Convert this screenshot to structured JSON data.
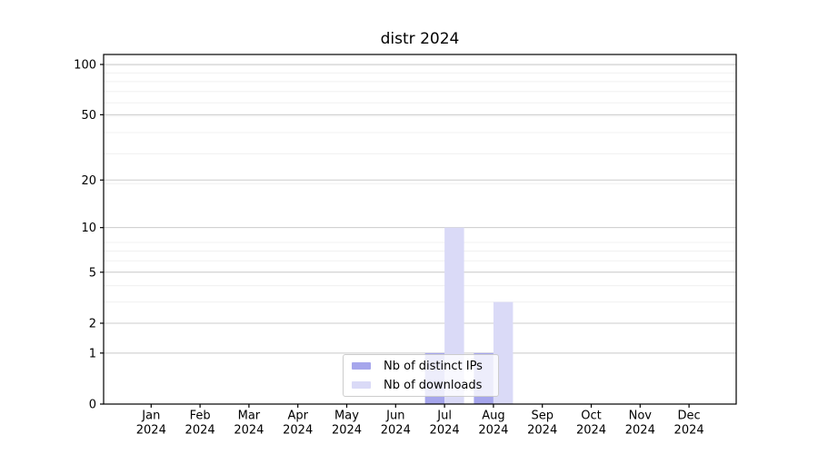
{
  "title": "distr 2024",
  "chart_data": {
    "type": "bar",
    "title": "distr 2024",
    "x": {
      "months": [
        "Jan",
        "Feb",
        "Mar",
        "Apr",
        "May",
        "Jun",
        "Jul",
        "Aug",
        "Sep",
        "Oct",
        "Nov",
        "Dec"
      ],
      "year": "2024"
    },
    "categories": [
      "Jan 2024",
      "Feb 2024",
      "Mar 2024",
      "Apr 2024",
      "May 2024",
      "Jun 2024",
      "Jul 2024",
      "Aug 2024",
      "Sep 2024",
      "Oct 2024",
      "Nov 2024",
      "Dec 2024"
    ],
    "series": [
      {
        "name": "Nb of distinct IPs",
        "color": "#a6a6ec",
        "values": [
          0,
          0,
          0,
          0,
          0,
          0,
          1,
          1,
          0,
          0,
          0,
          0
        ]
      },
      {
        "name": "Nb of downloads",
        "color": "#dadaf7",
        "values": [
          0,
          0,
          0,
          0,
          0,
          0,
          10,
          3,
          0,
          0,
          0,
          0
        ]
      }
    ],
    "y_scale": "log1p",
    "y_ticks": [
      0,
      1,
      2,
      5,
      10,
      20,
      50,
      100
    ],
    "ylim": [
      0,
      114
    ],
    "grid": "horizontal major and minor",
    "legend_position": "lower center"
  },
  "colors": {
    "axis": "#000000",
    "tick_label": "#000000",
    "grid_major": "#cccccc",
    "grid_minor": "#f0f0f0",
    "background": "#ffffff",
    "legend_border": "#cccccc"
  }
}
